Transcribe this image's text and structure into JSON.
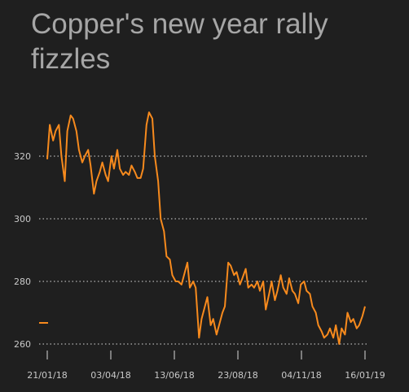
{
  "chart_data": {
    "type": "line",
    "title": "Copper's new year rally fizzles",
    "xlabel": "",
    "ylabel": "",
    "ylim": [
      257,
      335
    ],
    "x_tick_labels": [
      "21/01/18",
      "03/04/18",
      "13/06/18",
      "23/08/18",
      "04/11/18",
      "16/01/19"
    ],
    "y_ticks": [
      260,
      280,
      300,
      320
    ],
    "grid": "horizontal dotted",
    "colors": {
      "line": "#f78a1d",
      "background": "#1f1f1f",
      "grid": "#d9d9d9",
      "text": "#a6a6a6"
    },
    "series": [
      {
        "x": [
          "2018-01-02",
          "2018-01-05",
          "2018-01-09",
          "2018-01-12",
          "2018-01-16",
          "2018-01-19",
          "2018-01-23",
          "2018-01-26",
          "2018-01-30",
          "2018-02-02",
          "2018-02-06",
          "2018-02-09",
          "2018-02-13",
          "2018-02-16",
          "2018-02-20",
          "2018-02-23",
          "2018-02-27",
          "2018-03-02",
          "2018-03-06",
          "2018-03-09",
          "2018-03-13",
          "2018-03-16",
          "2018-03-20",
          "2018-03-23",
          "2018-03-27",
          "2018-03-30",
          "2018-04-03",
          "2018-04-06",
          "2018-04-10",
          "2018-04-13",
          "2018-04-17",
          "2018-04-20",
          "2018-04-24",
          "2018-04-27",
          "2018-05-01",
          "2018-05-04",
          "2018-05-08",
          "2018-05-11",
          "2018-05-15",
          "2018-05-18",
          "2018-05-22",
          "2018-05-25",
          "2018-05-29",
          "2018-06-01",
          "2018-06-05",
          "2018-06-08",
          "2018-06-12",
          "2018-06-15",
          "2018-06-19",
          "2018-06-22",
          "2018-06-26",
          "2018-06-29",
          "2018-07-03",
          "2018-07-06",
          "2018-07-10",
          "2018-07-13",
          "2018-07-17",
          "2018-07-20",
          "2018-07-24",
          "2018-07-27",
          "2018-07-31",
          "2018-08-03",
          "2018-08-07",
          "2018-08-10",
          "2018-08-14",
          "2018-08-17",
          "2018-08-21",
          "2018-08-24",
          "2018-08-28",
          "2018-08-31",
          "2018-09-04",
          "2018-09-07",
          "2018-09-11",
          "2018-09-14",
          "2018-09-18",
          "2018-09-21",
          "2018-09-25",
          "2018-09-28",
          "2018-10-02",
          "2018-10-05",
          "2018-10-09",
          "2018-10-12",
          "2018-10-16",
          "2018-10-19",
          "2018-10-23",
          "2018-10-26",
          "2018-10-30",
          "2018-11-02",
          "2018-11-06",
          "2018-11-09",
          "2018-11-13",
          "2018-11-16",
          "2018-11-20",
          "2018-11-23",
          "2018-11-27",
          "2018-11-30",
          "2018-12-04",
          "2018-12-07",
          "2018-12-11",
          "2018-12-14",
          "2018-12-18",
          "2018-12-21",
          "2018-12-25",
          "2018-12-28",
          "2019-01-01",
          "2019-01-04",
          "2019-01-08",
          "2019-01-11",
          "2019-01-15",
          "2019-01-18"
        ],
        "values": [
          319,
          330,
          325,
          328,
          330,
          320,
          312,
          328,
          333,
          332,
          328,
          322,
          318,
          320,
          322,
          317,
          308,
          312,
          315,
          318,
          314,
          312,
          320,
          316,
          322,
          316,
          314,
          315,
          314,
          317,
          315,
          313,
          313,
          316,
          330,
          334,
          332,
          320,
          312,
          300,
          296,
          288,
          287,
          282,
          280,
          280,
          279,
          282,
          286,
          278,
          280,
          278,
          262,
          268,
          272,
          275,
          266,
          268,
          263,
          266,
          270,
          272,
          286,
          285,
          282,
          283,
          279,
          281,
          284,
          278,
          279,
          278,
          280,
          277,
          280,
          271,
          276,
          280,
          274,
          277,
          282,
          278,
          276,
          281,
          277,
          276,
          273,
          279,
          280,
          277,
          276,
          272,
          270,
          266,
          264,
          262,
          263,
          265,
          262,
          266,
          260,
          265,
          263,
          270,
          267,
          268,
          265,
          266,
          269,
          272
        ]
      }
    ]
  }
}
